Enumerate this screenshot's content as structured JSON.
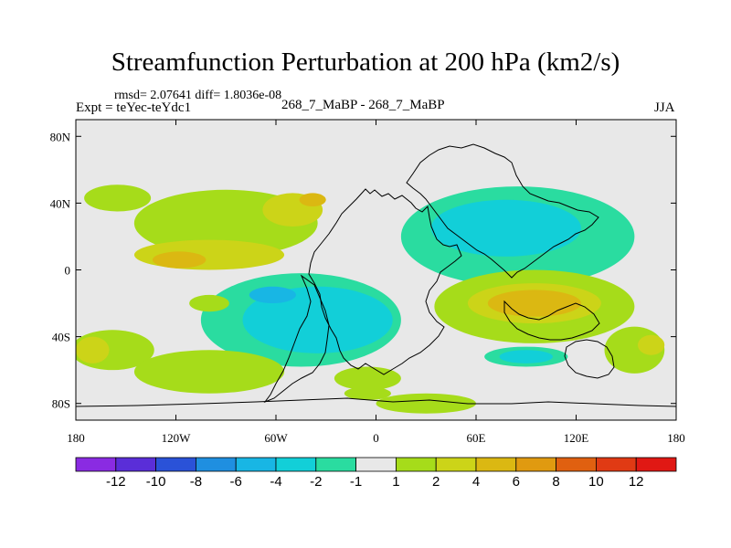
{
  "chart_data": {
    "type": "contour-map",
    "title": "Streamfunction Perturbation at 200 hPa (km2/s)",
    "stats_text": "rmsd= 2.07641 diff= 1.8036e-08",
    "experiment_text": "Expt = teYec-teYdc1",
    "center_text": "268_7_MaBP - 268_7_MaBP",
    "season": "JJA",
    "x_axis": {
      "range": [
        -180,
        180
      ],
      "ticks": [
        {
          "value": -180,
          "label": "180"
        },
        {
          "value": -120,
          "label": "120W"
        },
        {
          "value": -60,
          "label": "60W"
        },
        {
          "value": 0,
          "label": "0"
        },
        {
          "value": 60,
          "label": "60E"
        },
        {
          "value": 120,
          "label": "120E"
        },
        {
          "value": 180,
          "label": "180"
        }
      ]
    },
    "y_axis": {
      "range": [
        -90,
        90
      ],
      "ticks": [
        {
          "value": 80,
          "label": "80N"
        },
        {
          "value": 40,
          "label": "40N"
        },
        {
          "value": 0,
          "label": "0"
        },
        {
          "value": -40,
          "label": "40S"
        },
        {
          "value": -80,
          "label": "80S"
        }
      ]
    },
    "colorbar": {
      "labels": [
        "-12",
        "-10",
        "-8",
        "-6",
        "-4",
        "-2",
        "-1",
        "1",
        "2",
        "4",
        "6",
        "8",
        "10",
        "12"
      ],
      "colors": [
        "#8a2be2",
        "#5a2ed8",
        "#2a52d8",
        "#1f8fe0",
        "#18b6e4",
        "#12cfd8",
        "#2adca0",
        "#e8e8e8",
        "#a6dc1a",
        "#ccd418",
        "#dbb812",
        "#e09a10",
        "#e06010",
        "#e03a14",
        "#e01814"
      ]
    },
    "background_color": "#e8e8e8",
    "anomalies": [
      {
        "lon": -155,
        "lat": 43,
        "rx": 20,
        "ry": 8,
        "level": 1
      },
      {
        "lon": -90,
        "lat": 28,
        "rx": 55,
        "ry": 20,
        "level": 1
      },
      {
        "lon": -100,
        "lat": 9,
        "rx": 45,
        "ry": 9,
        "level": 2
      },
      {
        "lon": -118,
        "lat": 6,
        "rx": 16,
        "ry": 5,
        "level": 4
      },
      {
        "lon": -50,
        "lat": 36,
        "rx": 18,
        "ry": 10,
        "level": 2
      },
      {
        "lon": -38,
        "lat": 42,
        "rx": 8,
        "ry": 4,
        "level": 4
      },
      {
        "lon": -158,
        "lat": -48,
        "rx": 25,
        "ry": 12,
        "level": 1
      },
      {
        "lon": -170,
        "lat": -48,
        "rx": 10,
        "ry": 8,
        "level": 2
      },
      {
        "lon": -100,
        "lat": -61,
        "rx": 45,
        "ry": 13,
        "level": 1
      },
      {
        "lon": -5,
        "lat": -65,
        "rx": 20,
        "ry": 7,
        "level": 1
      },
      {
        "lon": -5,
        "lat": -74,
        "rx": 14,
        "ry": 4,
        "level": 1
      },
      {
        "lon": 30,
        "lat": -80,
        "rx": 30,
        "ry": 6,
        "level": 1
      },
      {
        "lon": -100,
        "lat": -20,
        "rx": 12,
        "ry": 5,
        "level": 1
      },
      {
        "lon": 95,
        "lat": -22,
        "rx": 60,
        "ry": 22,
        "level": 1
      },
      {
        "lon": 95,
        "lat": -20,
        "rx": 40,
        "ry": 12,
        "level": 2
      },
      {
        "lon": 95,
        "lat": -20,
        "rx": 28,
        "ry": 8,
        "level": 4
      },
      {
        "lon": 155,
        "lat": -48,
        "rx": 18,
        "ry": 14,
        "level": 1
      },
      {
        "lon": 165,
        "lat": -45,
        "rx": 8,
        "ry": 6,
        "level": 2
      },
      {
        "lon": 85,
        "lat": 20,
        "rx": 70,
        "ry": 30,
        "level": -1
      },
      {
        "lon": 78,
        "lat": 25,
        "rx": 45,
        "ry": 17,
        "level": -2
      },
      {
        "lon": -45,
        "lat": -30,
        "rx": 60,
        "ry": 28,
        "level": -1
      },
      {
        "lon": -35,
        "lat": -30,
        "rx": 45,
        "ry": 20,
        "level": -2
      },
      {
        "lon": -62,
        "lat": -15,
        "rx": 14,
        "ry": 5,
        "level": -4
      },
      {
        "lon": 90,
        "lat": -52,
        "rx": 25,
        "ry": 6,
        "level": -1
      },
      {
        "lon": 90,
        "lat": -52,
        "rx": 16,
        "ry": 4,
        "level": -2
      }
    ]
  }
}
